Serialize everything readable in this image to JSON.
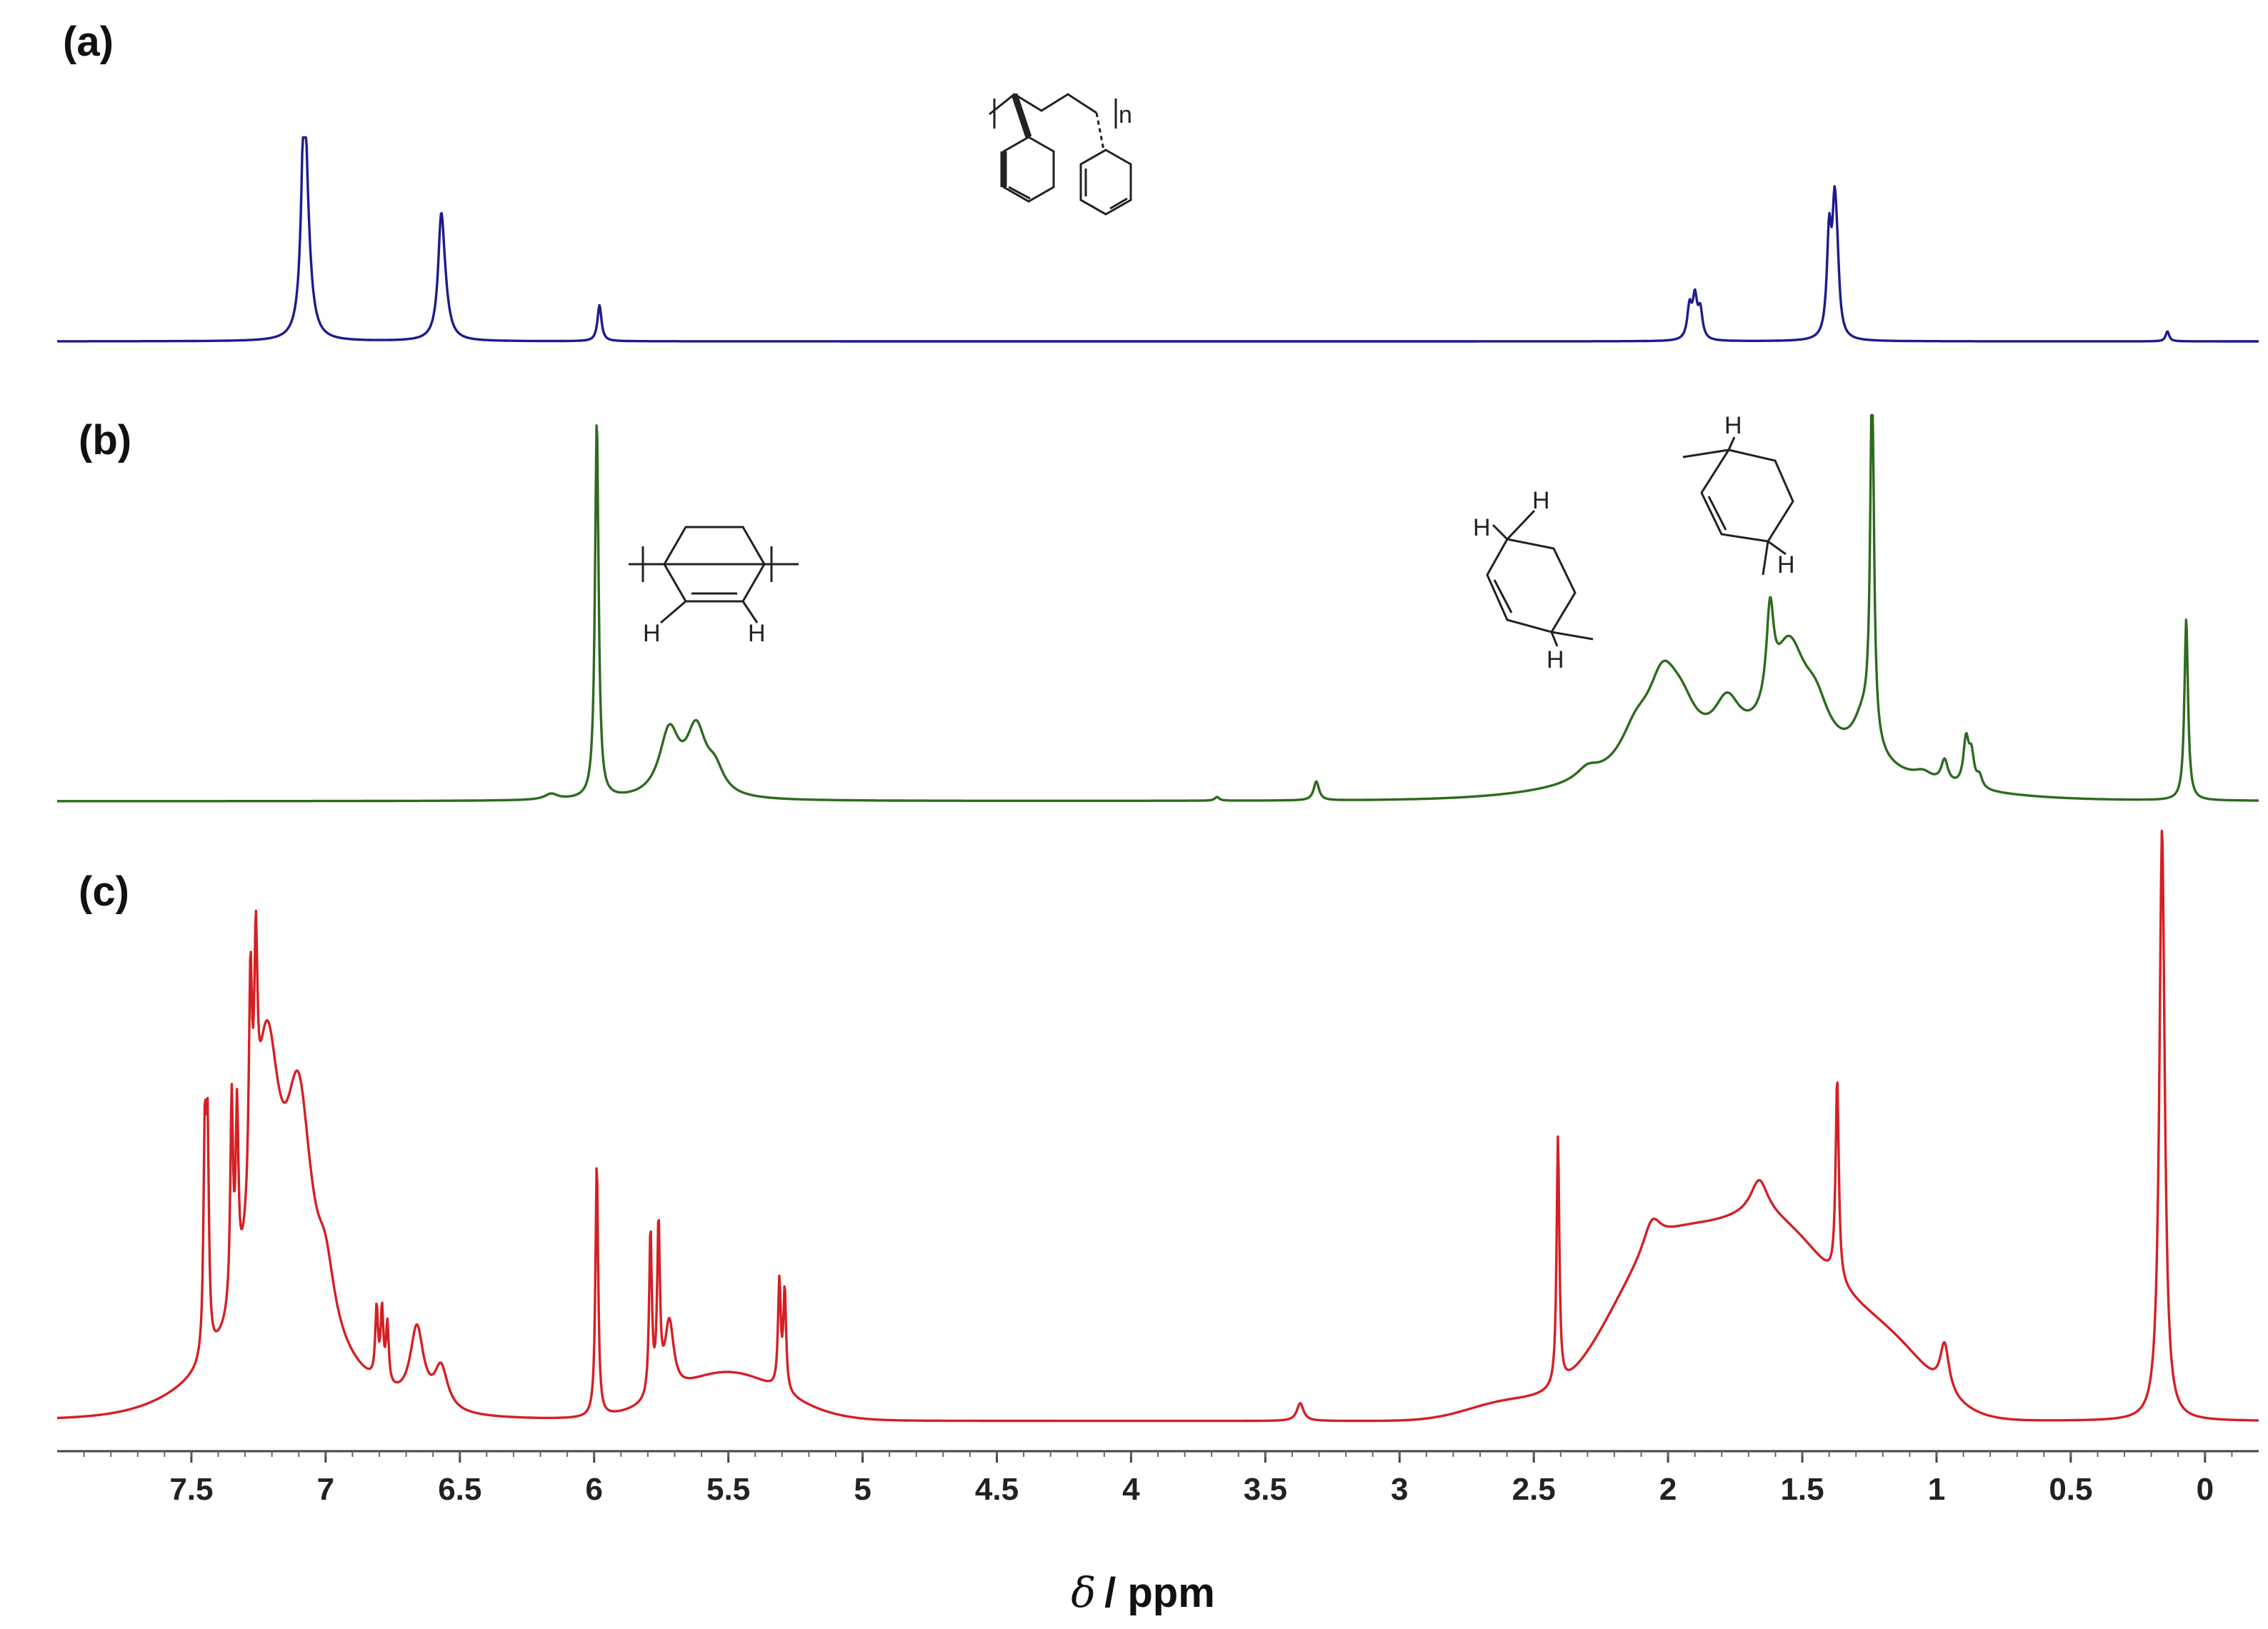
{
  "chart_data": {
    "type": "line",
    "xlabel_symbol": "δ",
    "xlabel_unit": "/ ppm",
    "x_reversed": true,
    "xlim": [
      8.0,
      -0.2
    ],
    "xticks": [
      "7.5",
      "7",
      "6.5",
      "6",
      "5.5",
      "5",
      "4.5",
      "4",
      "3.5",
      "3",
      "2.5",
      "2",
      "1.5",
      "1",
      "0.5",
      "0"
    ],
    "xtick_values": [
      7.5,
      7.0,
      6.5,
      6.0,
      5.5,
      5.0,
      4.5,
      4.0,
      3.5,
      3.0,
      2.5,
      2.0,
      1.5,
      1.0,
      0.5,
      0.0
    ],
    "grid": false,
    "legend": "none",
    "panels": [
      {
        "label": "(a)",
        "color": "#1c1c8c",
        "peaks": [
          {
            "x": 7.08,
            "h": 1.0,
            "w": 0.012
          },
          {
            "x": 7.07,
            "h": 0.35,
            "w": 0.02
          },
          {
            "x": 6.57,
            "h": 0.48,
            "w": 0.013
          },
          {
            "x": 6.56,
            "h": 0.2,
            "w": 0.02
          },
          {
            "x": 5.98,
            "h": 0.18,
            "w": 0.009
          },
          {
            "x": 1.92,
            "h": 0.16,
            "w": 0.01
          },
          {
            "x": 1.9,
            "h": 0.2,
            "w": 0.01
          },
          {
            "x": 1.88,
            "h": 0.14,
            "w": 0.01
          },
          {
            "x": 1.4,
            "h": 0.5,
            "w": 0.01
          },
          {
            "x": 1.38,
            "h": 0.55,
            "w": 0.01
          },
          {
            "x": 1.37,
            "h": 0.25,
            "w": 0.01
          },
          {
            "x": 0.14,
            "h": 0.05,
            "w": 0.008
          }
        ]
      },
      {
        "label": "(b)",
        "color": "#2d6b1e",
        "peaks": [
          {
            "x": 5.99,
            "h": 1.0,
            "w": 0.008
          },
          {
            "x": 6.16,
            "h": 0.015,
            "w": 0.03
          },
          {
            "x": 5.72,
            "h": 0.17,
            "w": 0.045
          },
          {
            "x": 5.62,
            "h": 0.17,
            "w": 0.045
          },
          {
            "x": 5.55,
            "h": 0.06,
            "w": 0.04
          },
          {
            "x": 3.68,
            "h": 0.01,
            "w": 0.01
          },
          {
            "x": 3.31,
            "h": 0.05,
            "w": 0.012
          },
          {
            "x": 2.3,
            "h": 0.03,
            "w": 0.05
          },
          {
            "x": 2.12,
            "h": 0.09,
            "w": 0.07
          },
          {
            "x": 2.02,
            "h": 0.2,
            "w": 0.07
          },
          {
            "x": 1.95,
            "h": 0.1,
            "w": 0.07
          },
          {
            "x": 1.78,
            "h": 0.12,
            "w": 0.06
          },
          {
            "x": 1.62,
            "h": 0.24,
            "w": 0.016
          },
          {
            "x": 1.55,
            "h": 0.28,
            "w": 0.08
          },
          {
            "x": 1.45,
            "h": 0.1,
            "w": 0.06
          },
          {
            "x": 1.27,
            "h": 0.12,
            "w": 0.05
          },
          {
            "x": 1.24,
            "h": 0.97,
            "w": 0.008
          },
          {
            "x": 1.05,
            "h": 0.02,
            "w": 0.04
          },
          {
            "x": 0.97,
            "h": 0.06,
            "w": 0.015
          },
          {
            "x": 0.89,
            "h": 0.12,
            "w": 0.012
          },
          {
            "x": 0.87,
            "h": 0.08,
            "w": 0.012
          },
          {
            "x": 0.84,
            "h": 0.03,
            "w": 0.012
          },
          {
            "x": 0.07,
            "h": 0.48,
            "w": 0.008
          }
        ],
        "broad": [
          {
            "x": 1.65,
            "h": 0.1,
            "w": 0.45
          }
        ]
      },
      {
        "label": "(c)",
        "color": "#d42024",
        "peaks": [
          {
            "x": 7.45,
            "h": 0.35,
            "w": 0.006
          },
          {
            "x": 7.44,
            "h": 0.35,
            "w": 0.006
          },
          {
            "x": 7.35,
            "h": 0.35,
            "w": 0.006
          },
          {
            "x": 7.33,
            "h": 0.3,
            "w": 0.006
          },
          {
            "x": 7.28,
            "h": 0.38,
            "w": 0.007
          },
          {
            "x": 7.26,
            "h": 0.34,
            "w": 0.007
          },
          {
            "x": 7.22,
            "h": 0.48,
            "w": 0.06
          },
          {
            "x": 7.1,
            "h": 0.38,
            "w": 0.06
          },
          {
            "x": 7.0,
            "h": 0.1,
            "w": 0.04
          },
          {
            "x": 6.81,
            "h": 0.12,
            "w": 0.006
          },
          {
            "x": 6.79,
            "h": 0.12,
            "w": 0.006
          },
          {
            "x": 6.77,
            "h": 0.1,
            "w": 0.006
          },
          {
            "x": 6.66,
            "h": 0.13,
            "w": 0.03
          },
          {
            "x": 6.57,
            "h": 0.07,
            "w": 0.03
          },
          {
            "x": 5.99,
            "h": 0.43,
            "w": 0.006
          },
          {
            "x": 5.79,
            "h": 0.28,
            "w": 0.006
          },
          {
            "x": 5.76,
            "h": 0.28,
            "w": 0.006
          },
          {
            "x": 5.72,
            "h": 0.12,
            "w": 0.02
          },
          {
            "x": 5.31,
            "h": 0.18,
            "w": 0.006
          },
          {
            "x": 5.29,
            "h": 0.17,
            "w": 0.006
          },
          {
            "x": 3.37,
            "h": 0.03,
            "w": 0.015
          },
          {
            "x": 2.41,
            "h": 0.42,
            "w": 0.006
          },
          {
            "x": 2.06,
            "h": 0.05,
            "w": 0.04
          },
          {
            "x": 1.66,
            "h": 0.06,
            "w": 0.04
          },
          {
            "x": 1.37,
            "h": 0.34,
            "w": 0.007
          },
          {
            "x": 0.97,
            "h": 0.08,
            "w": 0.02
          },
          {
            "x": 0.16,
            "h": 1.0,
            "w": 0.012
          }
        ],
        "broad": [
          {
            "x": 7.18,
            "h": 0.1,
            "w": 0.25
          },
          {
            "x": 5.5,
            "h": 0.08,
            "w": 0.2
          },
          {
            "x": 2.05,
            "h": 0.23,
            "w": 0.2
          },
          {
            "x": 1.6,
            "h": 0.32,
            "w": 0.25
          },
          {
            "x": 1.15,
            "h": 0.08,
            "w": 0.15
          },
          {
            "x": 2.6,
            "h": 0.03,
            "w": 0.15
          }
        ]
      }
    ]
  },
  "structures": {
    "repeat_index": "n",
    "atom_h": "H"
  }
}
